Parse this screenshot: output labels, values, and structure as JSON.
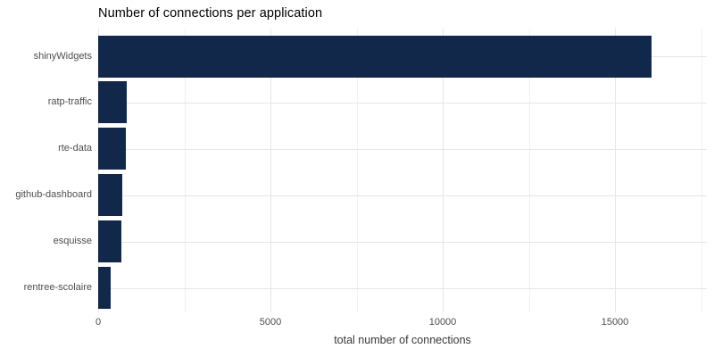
{
  "title": "Number of connections per application",
  "colors": {
    "bar": "#12284a",
    "grid_major": "#e6e6e6",
    "grid_minor": "#f1f1f1",
    "axis_text": "#4d4d4d",
    "axis_title_text": "#383838",
    "title_text": "#000000",
    "background": "#ffffff"
  },
  "chart_data": {
    "type": "bar",
    "orientation": "horizontal",
    "title": "Number of connections per application",
    "xlabel": "total number of connections",
    "ylabel": "",
    "categories": [
      "shinyWidgets",
      "ratp-traffic",
      "rte-data",
      "github-dashboard",
      "esquisse",
      "rentree-scolaire"
    ],
    "values": [
      16050,
      840,
      800,
      690,
      665,
      360
    ],
    "xlim": [
      0,
      17660
    ],
    "x_major_ticks": [
      0,
      5000,
      10000,
      15000
    ],
    "x_major_tick_labels": [
      "0",
      "5000",
      "10000",
      "15000"
    ],
    "x_minor_ticks": [
      2500,
      7500,
      12500,
      17500
    ],
    "grid": true,
    "legend": false
  }
}
